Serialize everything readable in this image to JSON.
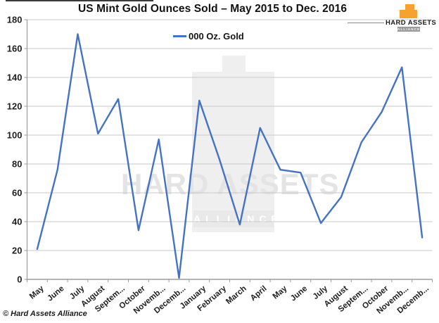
{
  "logo": {
    "brand": "HARD ASSETS",
    "sub": "ALLIANCE",
    "orange": "#F6A130"
  },
  "watermark": {
    "text": "HARD ASSETS",
    "band_text": "ALLIANCE"
  },
  "footer": {
    "copyright": "© Hard Assets Alliance"
  },
  "chart_data": {
    "type": "line",
    "title": "US Mint Gold Ounces Sold – May 2015 to Dec. 2016",
    "categories": [
      "May",
      "June",
      "July",
      "August",
      "Septem...",
      "October",
      "Novemb...",
      "Decemb...",
      "January",
      "February",
      "March",
      "April",
      "May",
      "June",
      "July",
      "August",
      "Septem...",
      "October",
      "Novemb...",
      "Decemb..."
    ],
    "series": [
      {
        "name": "000 Oz. Gold",
        "values": [
          21,
          76,
          170,
          101,
          125,
          34,
          97,
          1,
          124,
          83,
          38,
          105,
          76,
          74,
          39,
          57,
          95,
          116,
          147,
          29
        ]
      }
    ],
    "xlabel": "",
    "ylabel": "",
    "ylim": [
      0,
      180
    ],
    "ytick_step": 20,
    "grid": true,
    "legend_position": "top-center",
    "x_label_rotation_deg": -40,
    "colors": {
      "line": "#4472C4",
      "gridline": "#C9C9C9",
      "axis": "#9B9B9B",
      "label": "#1F1F1F"
    }
  }
}
